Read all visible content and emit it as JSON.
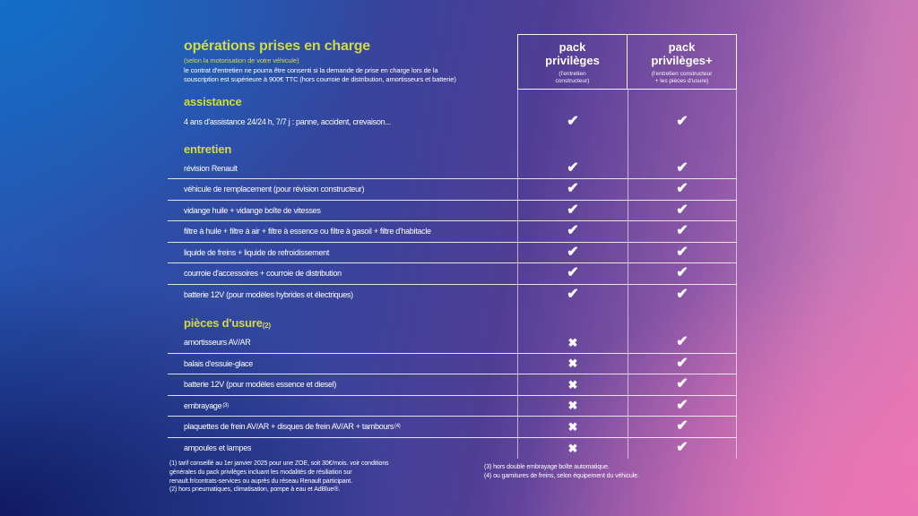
{
  "table": {
    "title": "opérations prises en charge",
    "subtitle": "(selon la motorisation de votre véhicule)",
    "note": "le contrat d'entretien ne pourra être consenti si la demande de prise en charge lors de la\nsouscription est supérieure à 900€ TTC (hors courroie de distribution, amortisseurs et batterie)"
  },
  "packs": [
    {
      "name": "pack\nprivilèges",
      "description": "(l'entretien\nconstructeur)"
    },
    {
      "name": "pack\nprivilèges+",
      "description": "(l'entretien constructeur\n+ les pièces d'usure)"
    }
  ],
  "symbols": {
    "included": "✔",
    "excluded": "✖"
  },
  "sections": [
    {
      "heading": "assistance",
      "heading_sup": "",
      "rows": [
        {
          "label": "4 ans d'assistance 24/24 h, 7/7 j : panne, accident, crevaison...",
          "sup": "",
          "included": [
            true,
            true
          ]
        }
      ]
    },
    {
      "heading": "entretien",
      "heading_sup": "",
      "rows": [
        {
          "label": "révision Renault",
          "sup": "",
          "included": [
            true,
            true
          ]
        },
        {
          "label": "véhicule de remplacement (pour révision constructeur)",
          "sup": "",
          "included": [
            true,
            true
          ]
        },
        {
          "label": "vidange huile + vidange boîte de vitesses",
          "sup": "",
          "included": [
            true,
            true
          ]
        },
        {
          "label": "filtre à huile + filtre à air + filtre à essence ou filtre à gasoil + filtre d'habitacle",
          "sup": "",
          "included": [
            true,
            true
          ]
        },
        {
          "label": "liquide de freins + liquide de refroidissement",
          "sup": "",
          "included": [
            true,
            true
          ]
        },
        {
          "label": "courroie d'accessoires + courroie de distribution",
          "sup": "",
          "included": [
            true,
            true
          ]
        },
        {
          "label": "batterie 12V (pour modèles hybrides et électriques)",
          "sup": "",
          "included": [
            true,
            true
          ]
        }
      ]
    },
    {
      "heading": "pièces d'usure",
      "heading_sup": "(2)",
      "rows": [
        {
          "label": "amortisseurs AV/AR",
          "sup": "",
          "included": [
            false,
            true
          ]
        },
        {
          "label": "balais d'essuie-glace",
          "sup": "",
          "included": [
            false,
            true
          ]
        },
        {
          "label": "batterie 12V (pour modèles essence et diesel)",
          "sup": "",
          "included": [
            false,
            true
          ]
        },
        {
          "label": "embrayage",
          "sup": "(3)",
          "included": [
            false,
            true
          ]
        },
        {
          "label": "plaquettes de frein AV/AR + disques de frein AV/AR + tambours",
          "sup": "(4)",
          "included": [
            false,
            true
          ]
        },
        {
          "label": "ampoules et lampes",
          "sup": "",
          "included": [
            false,
            true
          ]
        }
      ]
    }
  ],
  "footnotes": {
    "left": "(1) tarif conseillé au 1er janvier 2025 pour une ZOE, soit 30€/mois. voir conditions\ngénérales du pack privilèges incluant les modalités de résiliation sur\nrenault.fr/contrats-services ou auprès du réseau Renault participant.\n(2) hors pneumatiques, climatisation, pompe à eau et AdBlue®.",
    "right": "(3) hors double embrayage boîte automatique.\n(4) ou garnitures de freins, selon équipement du véhicule."
  },
  "colors": {
    "accent_yellow": "#d3da3b",
    "text_white": "#ffffff",
    "gradient_blue_top_left": "#1271c9",
    "gradient_navy_bottom_left": "#0f165c",
    "gradient_mauve_top_right": "#b57cb7",
    "gradient_pink_bottom_right": "#ee74b4"
  }
}
